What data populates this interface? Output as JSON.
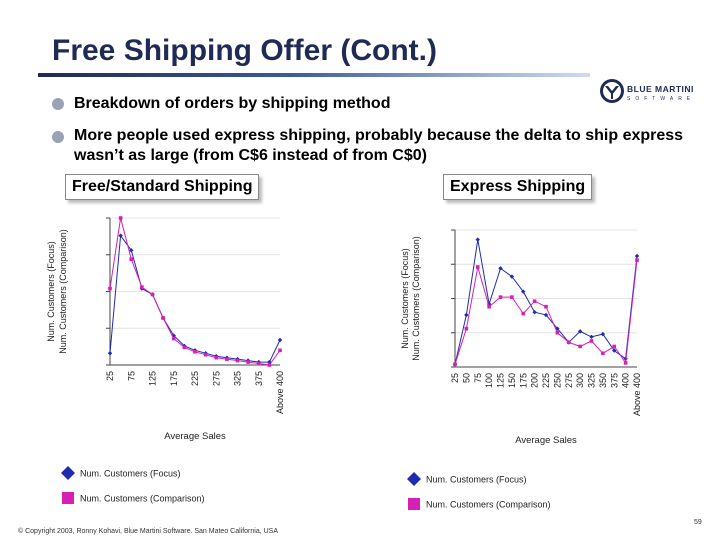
{
  "slide": {
    "title": "Free Shipping Offer (Cont.)",
    "bullets": [
      "Breakdown of orders by shipping method",
      "More people used express shipping, probably because the delta to ship express wasn’t as large (from C$6 instead of from C$0)"
    ],
    "logo_text": "BLUE MARTINI",
    "logo_subtext": "SOFTWARE",
    "copyright": "© Copyright 2003, Ronny Kohavi, Blue Martini Software. San Mateo California, USA",
    "page_number": "59"
  },
  "colors": {
    "title": "#1f2a55",
    "focus_series": "#1f2bb0",
    "comparison_series": "#d61fb5",
    "bullet": "#9aa3b5"
  },
  "chart_data": [
    {
      "type": "line",
      "panel_title": "Free/Standard Shipping",
      "xlabel": "Average Sales",
      "ylabel_lines": [
        "Num. Customers (Focus)",
        "Num. Customers (Comparison)"
      ],
      "categories": [
        "25",
        "50",
        "75",
        "100",
        "125",
        "150",
        "175",
        "200",
        "225",
        "250",
        "275",
        "300",
        "325",
        "350",
        "375",
        "400",
        "Above 400"
      ],
      "tick_labels": [
        "25",
        "75",
        "125",
        "175",
        "225",
        "275",
        "325",
        "375",
        "Above 400"
      ],
      "ylim": [
        0,
        100
      ],
      "y_gridlines": [
        0,
        25,
        50,
        75,
        100
      ],
      "series": [
        {
          "name": "Num. Customers (Focus)",
          "color": "#1f2bb0",
          "marker": "diamond",
          "values": [
            8,
            88,
            78,
            52,
            48,
            32,
            20,
            13,
            10,
            8,
            6,
            5,
            4,
            3,
            2,
            2,
            17
          ]
        },
        {
          "name": "Num. Customers (Comparison)",
          "color": "#d61fb5",
          "marker": "square",
          "values": [
            52,
            100,
            72,
            53,
            48,
            32,
            18,
            12,
            9,
            7,
            5,
            4,
            3,
            2,
            1,
            0,
            10
          ]
        }
      ]
    },
    {
      "type": "line",
      "panel_title": "Express Shipping",
      "xlabel": "Average Sales",
      "ylabel_lines": [
        "Num. Customers (Focus)",
        "Num. Customers (Comparison)"
      ],
      "categories": [
        "25",
        "50",
        "75",
        "100",
        "125",
        "150",
        "175",
        "200",
        "225",
        "250",
        "275",
        "300",
        "325",
        "350",
        "375",
        "400",
        "Above 400"
      ],
      "tick_labels": [
        "25",
        "50",
        "75",
        "100",
        "125",
        "150",
        "175",
        "200",
        "225",
        "250",
        "275",
        "300",
        "325",
        "350",
        "375",
        "400",
        "Above 400"
      ],
      "ylim": [
        0,
        100
      ],
      "y_gridlines": [
        0,
        25,
        50,
        75,
        100
      ],
      "series": [
        {
          "name": "Num. Customers (Focus)",
          "color": "#1f2bb0",
          "marker": "diamond",
          "values": [
            2,
            38,
            93,
            46,
            72,
            66,
            55,
            40,
            38,
            28,
            18,
            26,
            22,
            24,
            12,
            6,
            81
          ]
        },
        {
          "name": "Num. Customers (Comparison)",
          "color": "#d61fb5",
          "marker": "square",
          "values": [
            2,
            28,
            73,
            44,
            51,
            51,
            39,
            48,
            44,
            25,
            18,
            15,
            19,
            10,
            15,
            3,
            78
          ]
        }
      ]
    }
  ]
}
